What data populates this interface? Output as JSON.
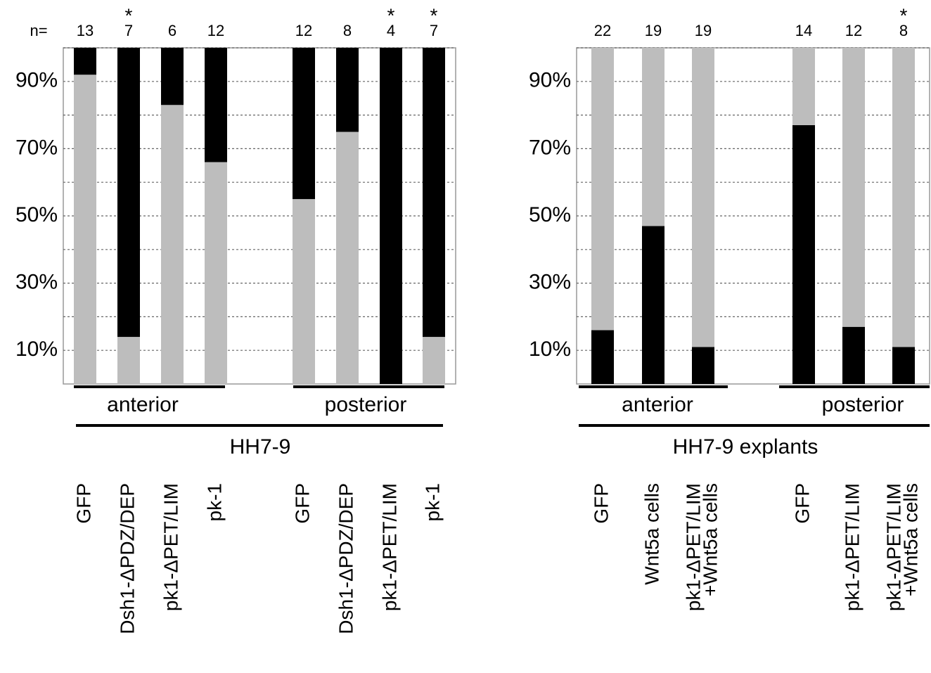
{
  "chart_data": [
    {
      "type": "bar",
      "stacked": true,
      "n_prefix": "n=",
      "n": [
        13,
        7,
        6,
        12,
        12,
        8,
        4,
        7
      ],
      "significance": [
        null,
        "*",
        null,
        null,
        null,
        null,
        "*",
        "*"
      ],
      "categories": [
        "GFP",
        "Dsh1-ΔPDZ/DEP",
        "pk1-ΔPET/LIM",
        "pk-1",
        "GFP",
        "Dsh1-ΔPDZ/DEP",
        "pk1-ΔPET/LIM",
        "pk-1"
      ],
      "series": [
        {
          "color": "#bdbdbd",
          "values": [
            92,
            14,
            83,
            66,
            55,
            75,
            0,
            14
          ]
        },
        {
          "color": "#000000",
          "values": [
            8,
            86,
            17,
            34,
            45,
            25,
            100,
            86
          ]
        }
      ],
      "groups": [
        "anterior",
        "posterior"
      ],
      "group_title": "HH7-9",
      "ylim": [
        0,
        100
      ],
      "yticks": [
        {
          "value": 10,
          "label": "10%"
        },
        {
          "value": 20,
          "label": null
        },
        {
          "value": 30,
          "label": "30%"
        },
        {
          "value": 40,
          "label": null
        },
        {
          "value": 50,
          "label": "50%"
        },
        {
          "value": 60,
          "label": null
        },
        {
          "value": 70,
          "label": "70%"
        },
        {
          "value": 80,
          "label": null
        },
        {
          "value": 90,
          "label": "90%"
        },
        {
          "value": 100,
          "label": null
        }
      ],
      "grid": true
    },
    {
      "type": "bar",
      "stacked": true,
      "n": [
        22,
        19,
        19,
        14,
        12,
        8
      ],
      "significance": [
        null,
        null,
        null,
        null,
        null,
        "*"
      ],
      "categories": [
        "GFP",
        "Wnt5a cells",
        [
          "pk1-ΔPET/LIM",
          "+Wnt5a cells"
        ],
        "GFP",
        "pk1-ΔPET/LIM",
        [
          "pk1-ΔPET/LIM",
          "+Wnt5a cells"
        ]
      ],
      "series": [
        {
          "color": "#000000",
          "values": [
            16,
            47,
            11,
            77,
            17,
            11
          ]
        },
        {
          "color": "#bdbdbd",
          "values": [
            84,
            53,
            89,
            23,
            83,
            89
          ]
        }
      ],
      "groups": [
        "anterior",
        "posterior"
      ],
      "group_title": "HH7-9 explants",
      "ylim": [
        0,
        100
      ],
      "yticks": [
        {
          "value": 10,
          "label": "10%"
        },
        {
          "value": 20,
          "label": null
        },
        {
          "value": 30,
          "label": "30%"
        },
        {
          "value": 40,
          "label": null
        },
        {
          "value": 50,
          "label": "50%"
        },
        {
          "value": 60,
          "label": null
        },
        {
          "value": 70,
          "label": "70%"
        },
        {
          "value": 80,
          "label": null
        },
        {
          "value": 90,
          "label": "90%"
        },
        {
          "value": 100,
          "label": null
        }
      ],
      "grid": true
    }
  ]
}
